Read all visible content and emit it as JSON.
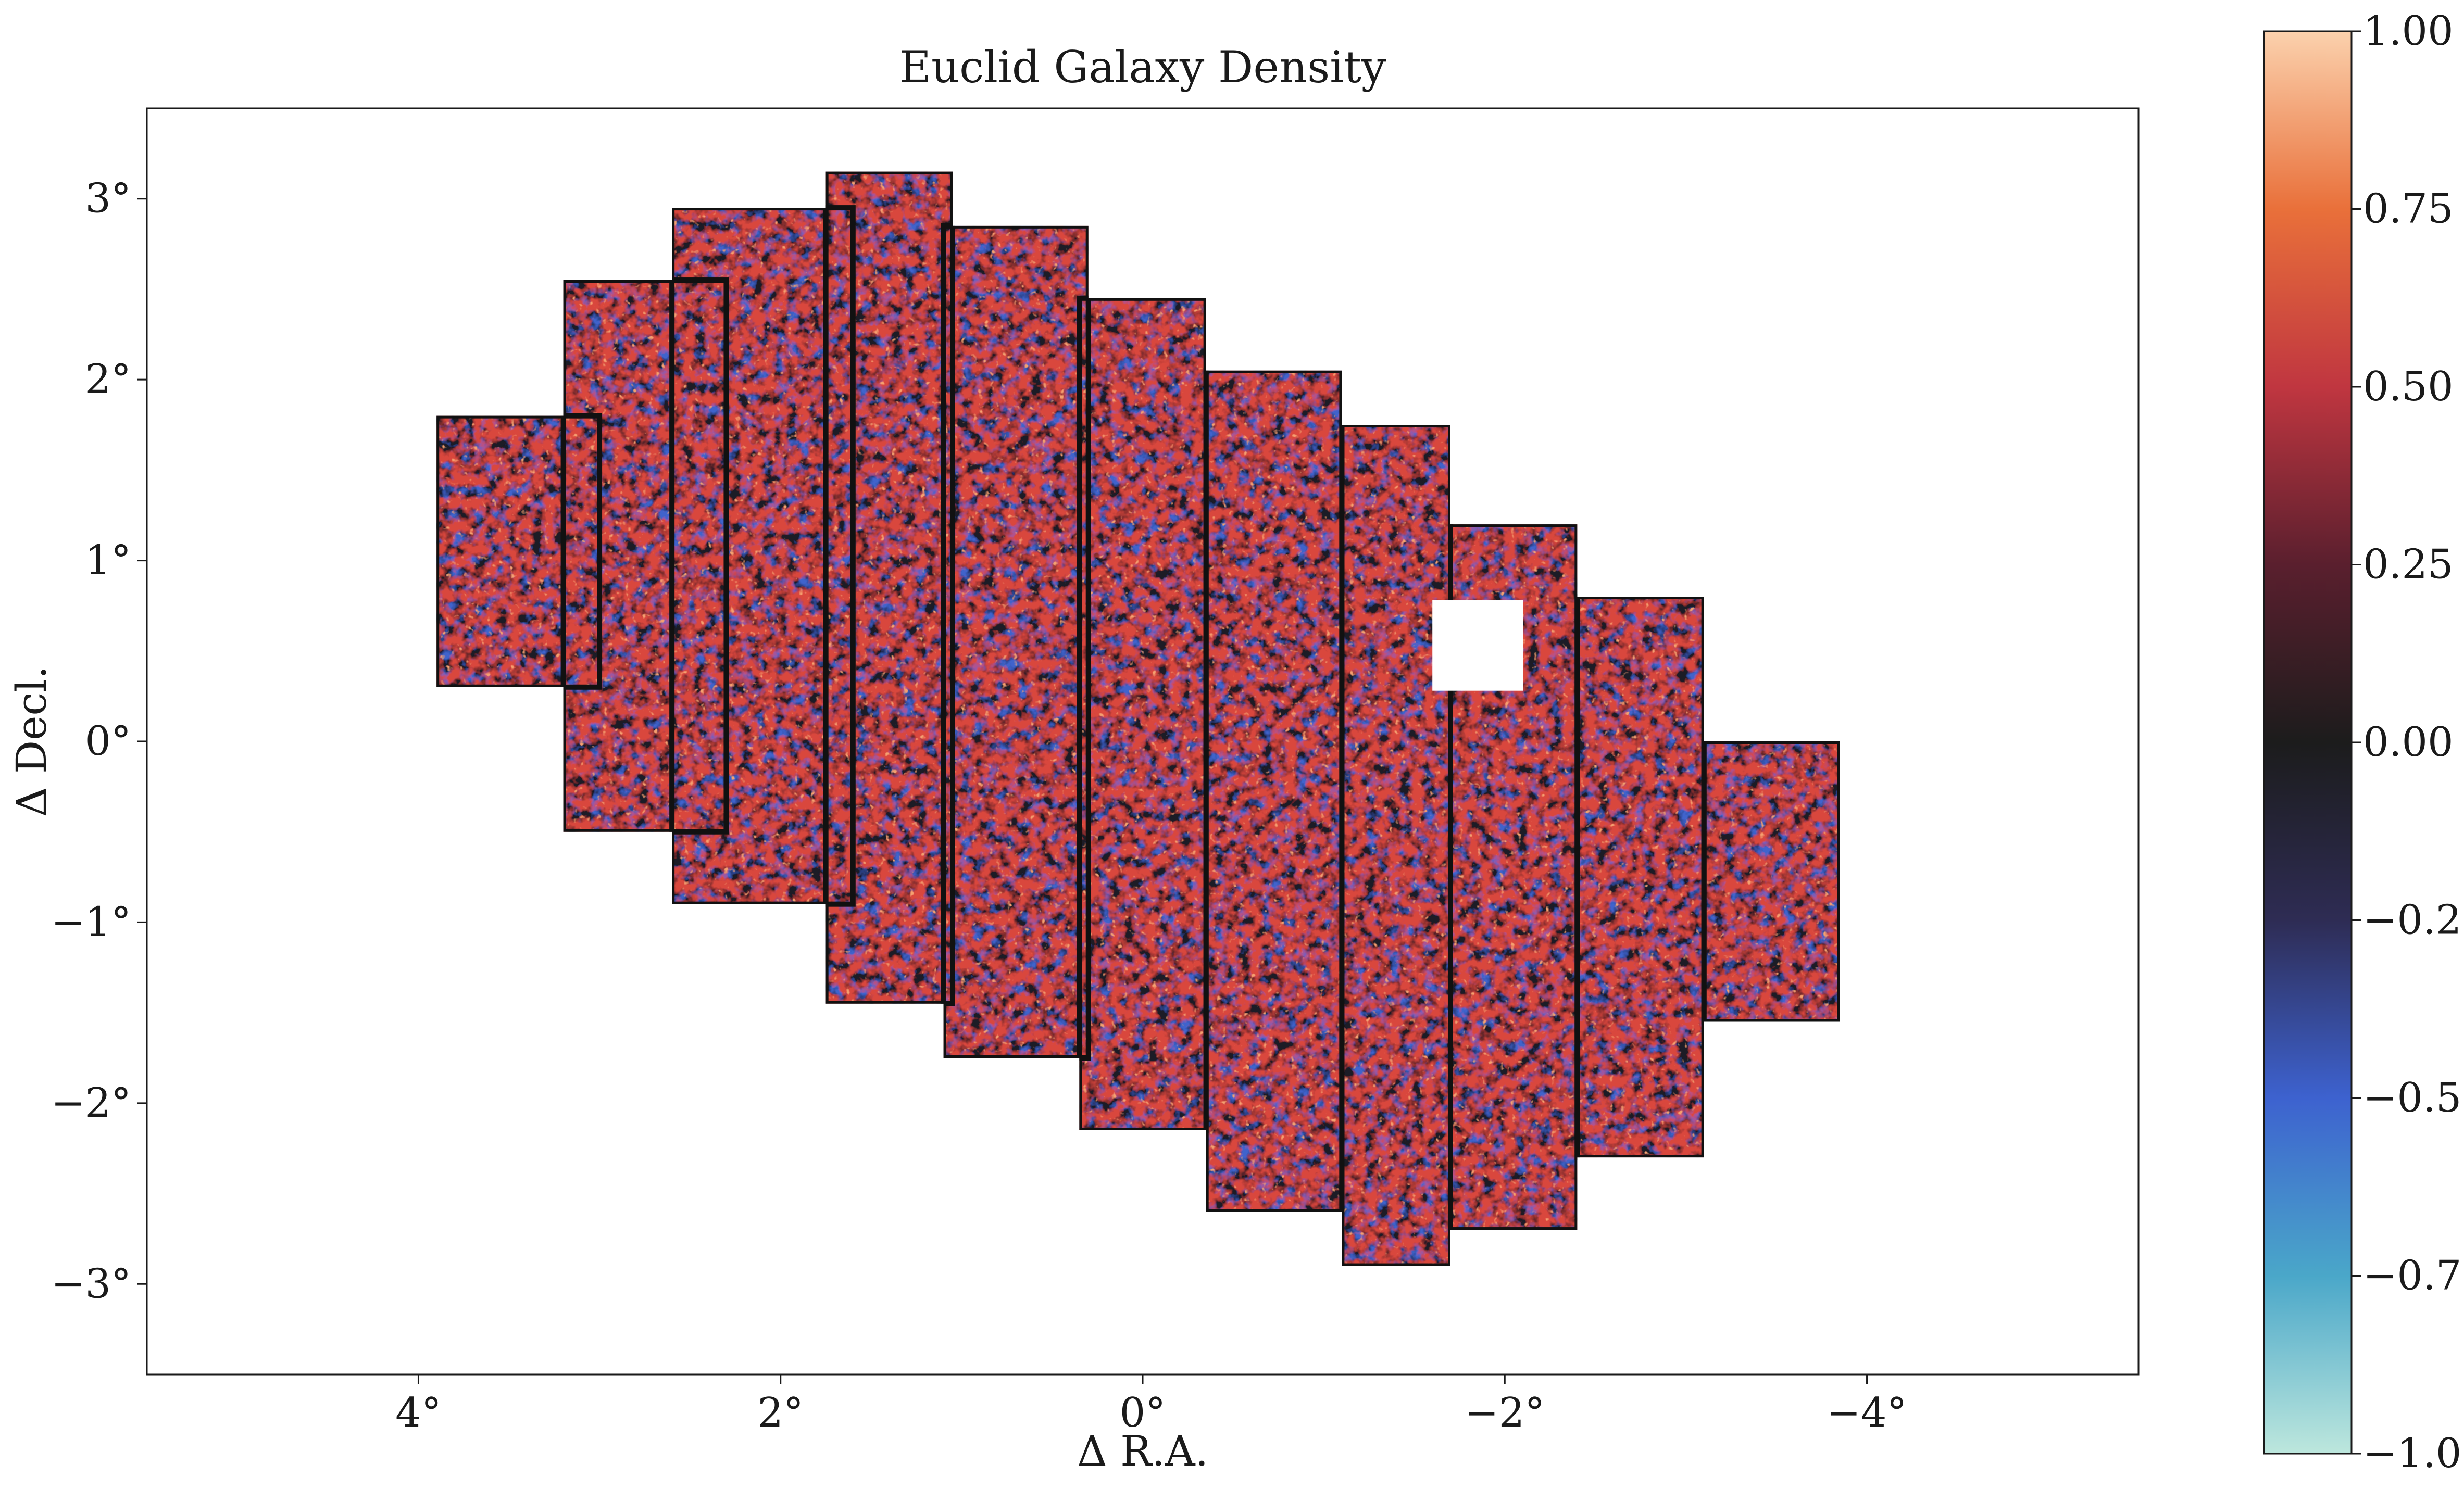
{
  "chart_data": {
    "type": "heatmap",
    "title": "Euclid Galaxy Density",
    "xlabel": "Δ R.A.",
    "ylabel": "Δ Decl.",
    "xlim": [
      5.5,
      -5.5
    ],
    "ylim": [
      -3.5,
      3.5
    ],
    "x_ticks": [
      4,
      2,
      0,
      -2,
      -4
    ],
    "x_tick_labels": [
      "4°",
      "2°",
      "0°",
      "−2°",
      "−4°"
    ],
    "y_ticks": [
      3,
      2,
      1,
      0,
      -1,
      -2,
      -3
    ],
    "y_tick_labels": [
      "3°",
      "2°",
      "1°",
      "0°",
      "−1°",
      "−2°",
      "−3°"
    ],
    "grid": false,
    "colorbar": {
      "range": [
        -1.0,
        1.0
      ],
      "ticks": [
        1.0,
        0.75,
        0.5,
        0.25,
        0.0,
        -0.25,
        -0.5,
        -0.75,
        -1.0
      ],
      "tick_labels": [
        "1.00",
        "0.75",
        "0.50",
        "0.25",
        "0.00",
        "−0.25",
        "−0.50",
        "−0.75",
        "−1.00"
      ],
      "colormap": "icefire",
      "color_stops": [
        {
          "v": -1.0,
          "color": "#bde7dd"
        },
        {
          "v": -0.75,
          "color": "#4aa7c9"
        },
        {
          "v": -0.5,
          "color": "#3d62cf"
        },
        {
          "v": -0.25,
          "color": "#2e2c54"
        },
        {
          "v": 0.0,
          "color": "#1c1c1c"
        },
        {
          "v": 0.25,
          "color": "#5a1f2e"
        },
        {
          "v": 0.5,
          "color": "#c03640"
        },
        {
          "v": 0.75,
          "color": "#e9703a"
        },
        {
          "v": 1.0,
          "color": "#fbd1ad"
        }
      ]
    },
    "footprint_tiles": [
      {
        "x": [
          3.0,
          3.9
        ],
        "y": [
          0.3,
          1.8
        ]
      },
      {
        "x": [
          2.3,
          3.2
        ],
        "y": [
          -0.5,
          2.55
        ]
      },
      {
        "x": [
          1.6,
          2.6
        ],
        "y": [
          -0.9,
          2.95
        ]
      },
      {
        "x": [
          1.05,
          1.75
        ],
        "y": [
          -1.45,
          3.15
        ]
      },
      {
        "x": [
          0.3,
          1.1
        ],
        "y": [
          -1.75,
          2.85
        ]
      },
      {
        "x": [
          -0.35,
          0.35
        ],
        "y": [
          -2.15,
          2.45
        ]
      },
      {
        "x": [
          -1.1,
          -0.35
        ],
        "y": [
          -2.6,
          2.05
        ]
      },
      {
        "x": [
          -1.7,
          -1.1
        ],
        "y": [
          -2.9,
          1.75
        ]
      },
      {
        "x": [
          -2.4,
          -1.7
        ],
        "y": [
          -2.7,
          1.2
        ]
      },
      {
        "x": [
          -3.1,
          -2.4
        ],
        "y": [
          -2.3,
          0.8
        ]
      },
      {
        "x": [
          -3.85,
          -3.1
        ],
        "y": [
          -1.55,
          0.0
        ]
      }
    ],
    "masked_region": {
      "x": [
        -1.6,
        -2.1
      ],
      "y": [
        0.28,
        0.78
      ]
    }
  }
}
